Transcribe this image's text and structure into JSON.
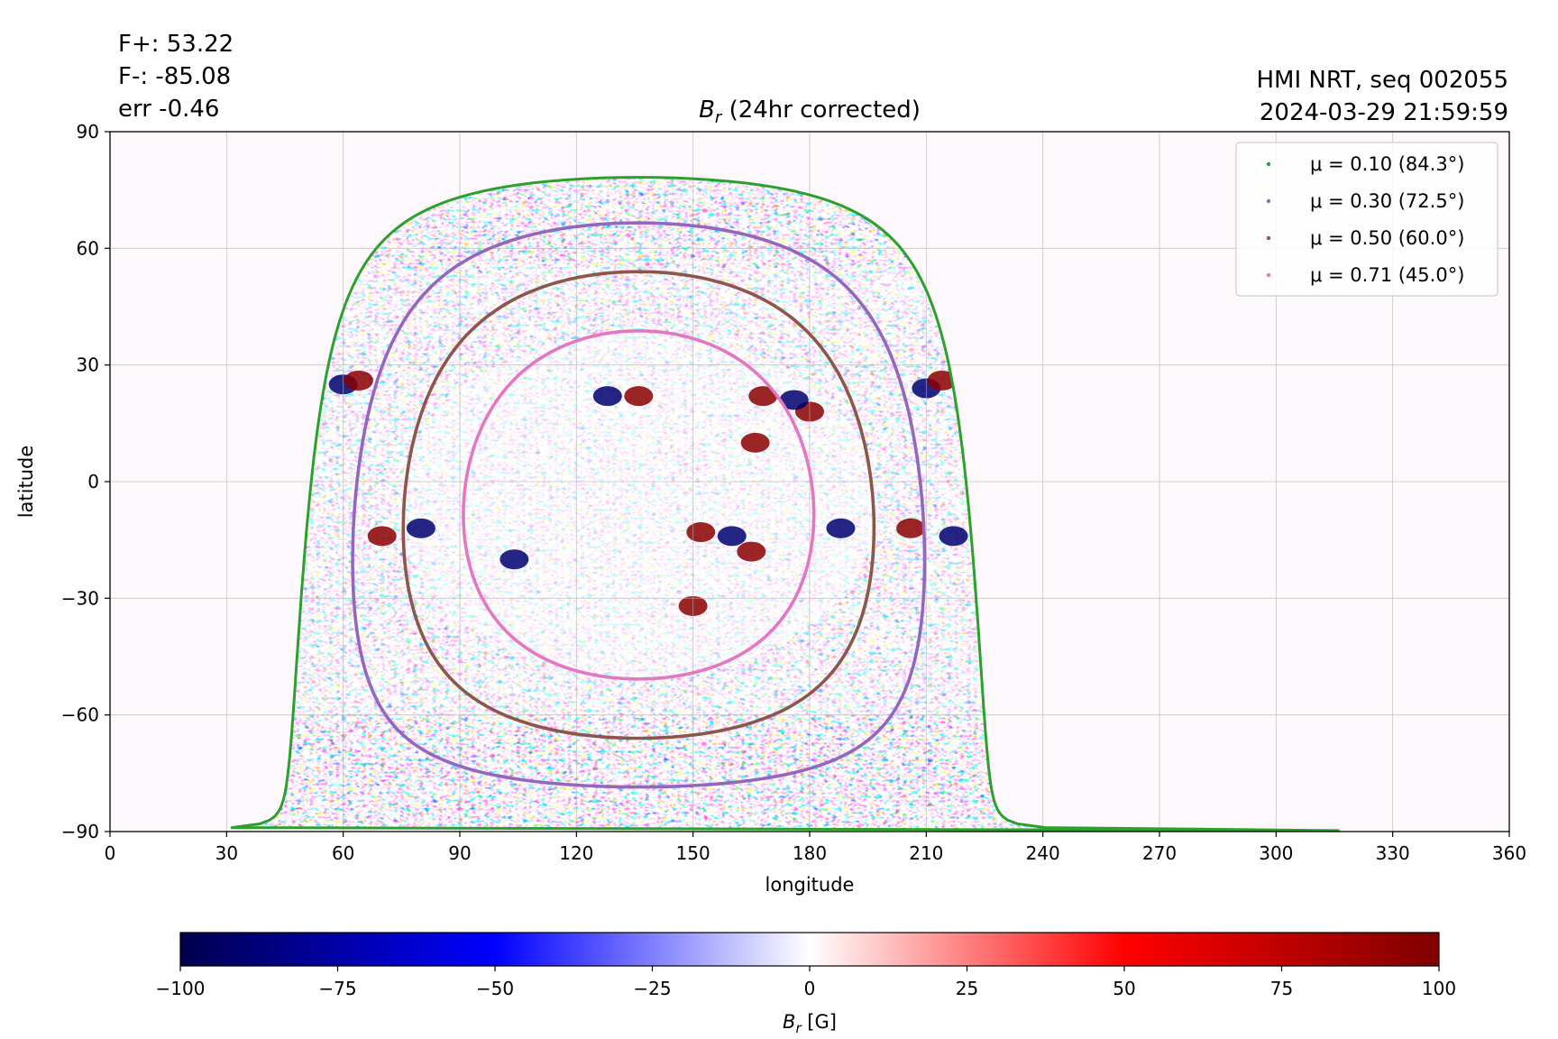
{
  "chart_data": {
    "type": "heatmap",
    "title": "B_r (24hr corrected)",
    "title_parts": {
      "main": "B",
      "sub": "r",
      "rest": " (24hr corrected)"
    },
    "xlabel": "longitude",
    "ylabel": "latitude",
    "xlim": [
      0,
      360
    ],
    "ylim": [
      -90,
      90
    ],
    "xticks": [
      0,
      30,
      60,
      90,
      120,
      150,
      180,
      210,
      240,
      270,
      300,
      330,
      360
    ],
    "yticks": [
      -90,
      -60,
      -30,
      0,
      30,
      60,
      90
    ],
    "xtick_labels": [
      "0",
      "30",
      "60",
      "90",
      "120",
      "150",
      "180",
      "210",
      "240",
      "270",
      "300",
      "330",
      "360"
    ],
    "ytick_labels": [
      "−90",
      "−60",
      "−30",
      "0",
      "30",
      "60",
      "90"
    ],
    "grid": true,
    "legend_placement": "top-right",
    "annotations_left": [
      "F+: 53.22",
      "F-: -85.08",
      "err -0.46"
    ],
    "annotations_right": [
      "HMI NRT, seq 002055",
      "2024-03-29 21:59:59"
    ],
    "disk_center": {
      "lon": 136,
      "lat": -6
    },
    "series": [
      {
        "name": "μ = 0.10 (84.3°)",
        "mu": 0.1,
        "angle_deg": 84.3,
        "color": "#2ca02c"
      },
      {
        "name": "μ = 0.30 (72.5°)",
        "mu": 0.3,
        "angle_deg": 72.5,
        "color": "#9467bd"
      },
      {
        "name": "μ = 0.50 (60.0°)",
        "mu": 0.5,
        "angle_deg": 60.0,
        "color": "#8c564b"
      },
      {
        "name": "μ = 0.71 (45.0°)",
        "mu": 0.71,
        "angle_deg": 45.0,
        "color": "#e377c2"
      }
    ],
    "colorbar": {
      "label": "B_r [G]",
      "label_parts": {
        "main": "B",
        "sub": "r",
        "rest": " [G]"
      },
      "range": [
        -100,
        100
      ],
      "ticks": [
        -100,
        -75,
        -50,
        -25,
        0,
        25,
        50,
        75,
        100
      ],
      "tick_labels": [
        "−100",
        "−75",
        "−50",
        "−25",
        "0",
        "25",
        "50",
        "75",
        "100"
      ],
      "colormap": "seismic",
      "colors": [
        "#00004c",
        "#0000ff",
        "#ffffff",
        "#ff0000",
        "#7f0000"
      ]
    },
    "magnetic_regions": [
      {
        "lon": 128,
        "lat": 22,
        "polarity": "negative"
      },
      {
        "lon": 136,
        "lat": 22,
        "polarity": "positive"
      },
      {
        "lon": 168,
        "lat": 22,
        "polarity": "positive"
      },
      {
        "lon": 180,
        "lat": 18,
        "polarity": "positive"
      },
      {
        "lon": 176,
        "lat": 21,
        "polarity": "negative"
      },
      {
        "lon": 166,
        "lat": 10,
        "polarity": "positive"
      },
      {
        "lon": 210,
        "lat": 24,
        "polarity": "negative"
      },
      {
        "lon": 214,
        "lat": 26,
        "polarity": "positive"
      },
      {
        "lon": 206,
        "lat": -12,
        "polarity": "positive"
      },
      {
        "lon": 217,
        "lat": -14,
        "polarity": "negative"
      },
      {
        "lon": 70,
        "lat": -14,
        "polarity": "positive"
      },
      {
        "lon": 80,
        "lat": -12,
        "polarity": "negative"
      },
      {
        "lon": 104,
        "lat": -20,
        "polarity": "negative"
      },
      {
        "lon": 152,
        "lat": -13,
        "polarity": "positive"
      },
      {
        "lon": 160,
        "lat": -14,
        "polarity": "negative"
      },
      {
        "lon": 165,
        "lat": -18,
        "polarity": "positive"
      },
      {
        "lon": 188,
        "lat": -12,
        "polarity": "negative"
      },
      {
        "lon": 150,
        "lat": -32,
        "polarity": "positive"
      },
      {
        "lon": 60,
        "lat": 25,
        "polarity": "negative"
      },
      {
        "lon": 64,
        "lat": 26,
        "polarity": "positive"
      }
    ]
  }
}
